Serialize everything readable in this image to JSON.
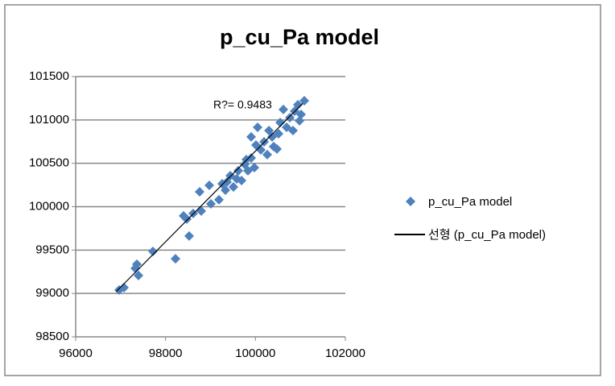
{
  "chart_data": {
    "type": "scatter",
    "title": "p_cu_Pa model",
    "series": [
      {
        "name": "p_cu_Pa model",
        "color": "#4f81bd",
        "x": [
          96967,
          97075,
          97361,
          97326,
          97397,
          97719,
          98221,
          98400,
          98525,
          98472,
          98615,
          98758,
          98794,
          98973,
          99009,
          99188,
          99260,
          99332,
          99440,
          99510,
          99618,
          99690,
          99761,
          99833,
          99905,
          99976,
          99905,
          100012,
          100048,
          100120,
          100192,
          100263,
          100300,
          100370,
          100406,
          100478,
          100514,
          100550,
          100621,
          100693,
          100765,
          100836,
          100872,
          100944,
          101015,
          101087,
          100980,
          99797,
          99583,
          99367
        ],
        "values": [
          99040,
          99068,
          99337,
          99290,
          99207,
          99485,
          99400,
          99894,
          99662,
          99857,
          99922,
          100172,
          99950,
          100246,
          100033,
          100080,
          100265,
          100190,
          100358,
          100228,
          100414,
          100302,
          100488,
          100414,
          100562,
          100451,
          100804,
          100711,
          100915,
          100655,
          100748,
          100600,
          100878,
          100804,
          100693,
          100665,
          100841,
          100971,
          101120,
          100915,
          101026,
          100878,
          101101,
          101175,
          101064,
          101221,
          100990,
          100543,
          100321,
          100284
        ]
      }
    ],
    "trendline": {
      "name": "선형 (p_cu_Pa model)",
      "color": "#000000",
      "x": [
        96900,
        101050
      ],
      "values": [
        99020,
        101190
      ]
    },
    "annotation": "R?= 0.9483",
    "xlim": [
      96000,
      102000
    ],
    "xticks": [
      96000,
      98000,
      100000,
      102000
    ],
    "ylim": [
      98500,
      101500
    ],
    "yticks": [
      98500,
      99000,
      99500,
      100000,
      100500,
      101000,
      101500
    ],
    "grid": true,
    "legend": "right"
  }
}
